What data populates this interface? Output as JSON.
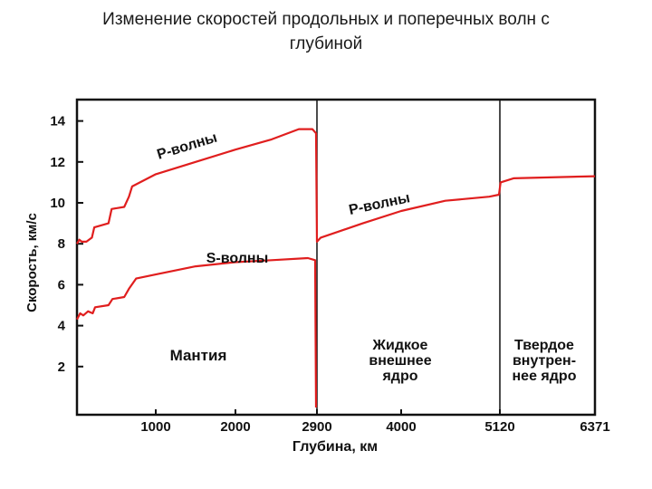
{
  "slide": {
    "title_line1": "Изменение скоростей продольных и поперечных волн с",
    "title_line2": "глубиной"
  },
  "chart_data": {
    "type": "line",
    "title": "Изменение скоростей продольных и поперечных волн с глубиной",
    "xlabel": "Глубина, км",
    "ylabel": "Скорость, км/с",
    "xlim": [
      0,
      6371
    ],
    "ylim": [
      0,
      14
    ],
    "x_ticks": [
      1000,
      2000,
      2900,
      4000,
      5120,
      6371
    ],
    "x_tick_labels": [
      "1000",
      "2000",
      "2900",
      "4000",
      "5120",
      "6371"
    ],
    "y_ticks": [
      2,
      4,
      6,
      8,
      10,
      12,
      14
    ],
    "y_tick_labels": [
      "2",
      "4",
      "6",
      "8",
      "10",
      "12",
      "14"
    ],
    "boundaries": [
      2900,
      5120
    ],
    "grid": false,
    "series": [
      {
        "name": "P-волны",
        "color": "#e01e1e",
        "points": [
          [
            0,
            8.0
          ],
          [
            30,
            8.2
          ],
          [
            60,
            8.1
          ],
          [
            120,
            8.1
          ],
          [
            190,
            8.3
          ],
          [
            220,
            8.8
          ],
          [
            400,
            9.0
          ],
          [
            440,
            9.7
          ],
          [
            600,
            9.8
          ],
          [
            660,
            10.3
          ],
          [
            700,
            10.8
          ],
          [
            1000,
            11.4
          ],
          [
            1500,
            12.0
          ],
          [
            2000,
            12.6
          ],
          [
            2400,
            13.1
          ],
          [
            2700,
            13.6
          ],
          [
            2850,
            13.6
          ],
          [
            2890,
            13.4
          ],
          [
            2900,
            8.1
          ],
          [
            2950,
            8.3
          ],
          [
            3500,
            9.0
          ],
          [
            4000,
            9.6
          ],
          [
            4500,
            10.1
          ],
          [
            5000,
            10.3
          ],
          [
            5110,
            10.4
          ],
          [
            5130,
            11.0
          ],
          [
            5300,
            11.2
          ],
          [
            6371,
            11.3
          ]
        ]
      },
      {
        "name": "S-волны",
        "color": "#e01e1e",
        "points": [
          [
            0,
            4.3
          ],
          [
            40,
            4.6
          ],
          [
            80,
            4.5
          ],
          [
            140,
            4.7
          ],
          [
            200,
            4.6
          ],
          [
            230,
            4.9
          ],
          [
            400,
            5.0
          ],
          [
            450,
            5.3
          ],
          [
            600,
            5.4
          ],
          [
            660,
            5.8
          ],
          [
            750,
            6.3
          ],
          [
            1000,
            6.5
          ],
          [
            1500,
            6.9
          ],
          [
            2000,
            7.1
          ],
          [
            2400,
            7.2
          ],
          [
            2800,
            7.3
          ],
          [
            2880,
            7.2
          ],
          [
            2890,
            0.0
          ]
        ]
      }
    ],
    "annotations": [
      {
        "text": "P-волны",
        "x": 1800,
        "y": 12.5
      },
      {
        "text": "P-волны",
        "x": 4000,
        "y": 10.0
      },
      {
        "text": "S-волны",
        "x": 1650,
        "y": 7.6
      },
      {
        "text": "Мантия",
        "x": 1400,
        "y": 2.5
      },
      {
        "text": "Жидкое внешнее ядро",
        "x": 4000,
        "y": 3.0
      },
      {
        "text": "Твердое внутрен- нее ядро",
        "x": 5760,
        "y": 3.0
      }
    ]
  },
  "labels": {
    "p_wave_mantle": "P-волны",
    "p_wave_core": "P-волны",
    "s_wave": "S-волны",
    "mantle": "Мантия",
    "outer_core_1": "Жидкое",
    "outer_core_2": "внешнее",
    "outer_core_3": "ядро",
    "inner_core_1": "Твердое",
    "inner_core_2": "внутрен-",
    "inner_core_3": "нее ядро"
  },
  "colors": {
    "curve": "#e01e1e",
    "axis": "#111111"
  }
}
